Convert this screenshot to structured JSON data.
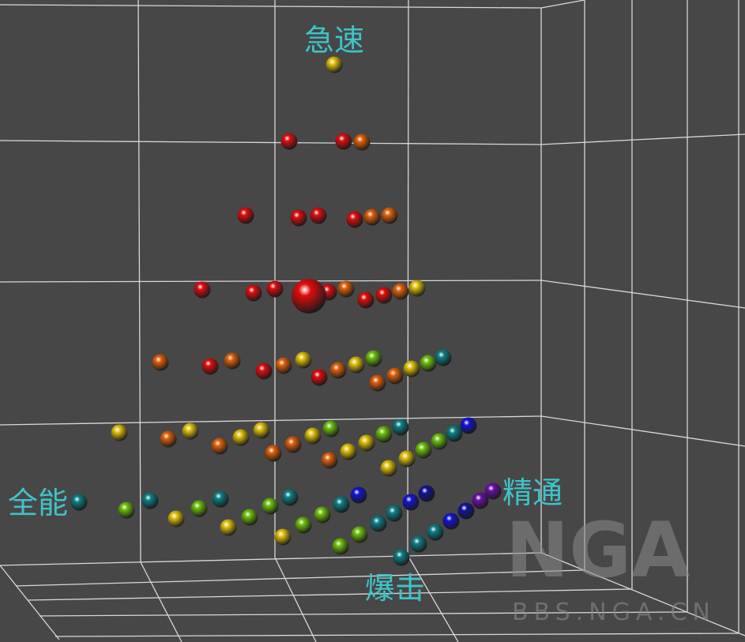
{
  "chart_data": {
    "type": "scatter3d",
    "axis_labels": {
      "top": "急速",
      "left": "全能",
      "right": "精通",
      "bottom": "爆击"
    },
    "watermark": {
      "logo": "NGA",
      "url": "BBS.NGA.CN"
    }
  }
}
